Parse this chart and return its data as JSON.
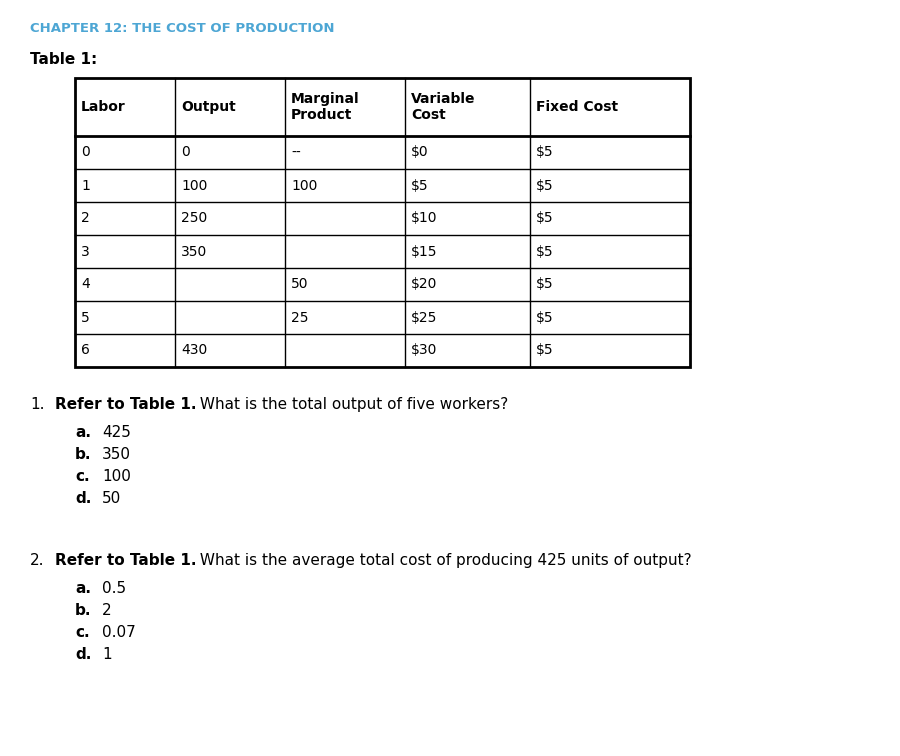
{
  "chapter_title": "CHAPTER 12: THE COST OF PRODUCTION",
  "chapter_title_color": "#4da6d4",
  "table_label": "Table 1:",
  "table_headers": [
    "Labor",
    "Output",
    "Marginal\nProduct",
    "Variable\nCost",
    "Fixed Cost"
  ],
  "table_data": [
    [
      "0",
      "0",
      "--",
      "$0",
      "$5"
    ],
    [
      "1",
      "100",
      "100",
      "$5",
      "$5"
    ],
    [
      "2",
      "250",
      "",
      "$10",
      "$5"
    ],
    [
      "3",
      "350",
      "",
      "$15",
      "$5"
    ],
    [
      "4",
      "",
      "50",
      "$20",
      "$5"
    ],
    [
      "5",
      "",
      "25",
      "$25",
      "$5"
    ],
    [
      "6",
      "430",
      "",
      "$30",
      "$5"
    ]
  ],
  "q1_num": "1.",
  "q1_bold": "Refer to Table 1.",
  "q1_rest": " What is the total output of five workers?",
  "q1_options": [
    [
      "a.",
      "425"
    ],
    [
      "b.",
      "350"
    ],
    [
      "c.",
      "100"
    ],
    [
      "d.",
      "50"
    ]
  ],
  "q2_num": "2.",
  "q2_bold": "Refer to Table 1.",
  "q2_rest": " What is the average total cost of producing 425 units of output?",
  "q2_options": [
    [
      "a.",
      "0.5"
    ],
    [
      "b.",
      "2"
    ],
    [
      "c.",
      "0.07"
    ],
    [
      "d.",
      "1"
    ]
  ],
  "bg_color": "#ffffff",
  "text_color": "#000000"
}
